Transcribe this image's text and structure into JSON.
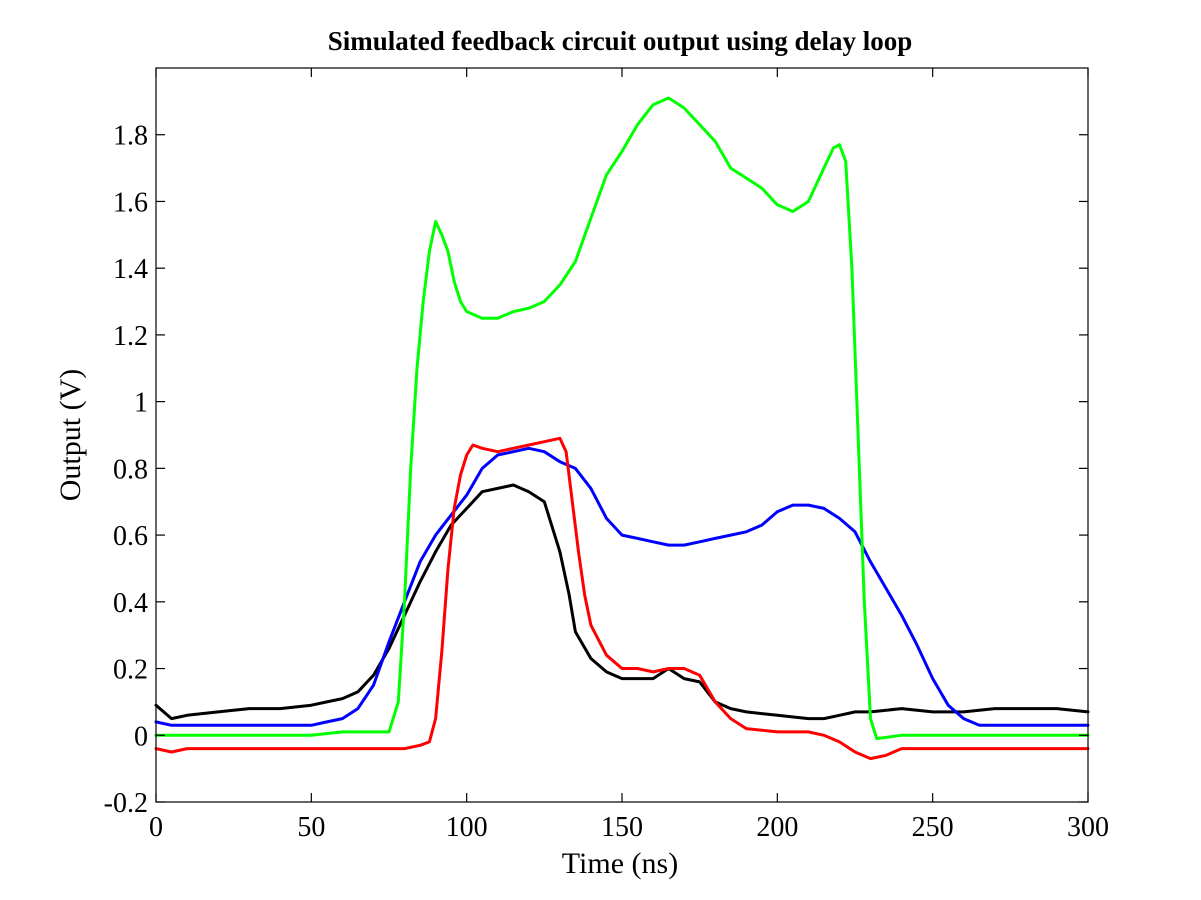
{
  "chart_data": {
    "type": "line",
    "title": "Simulated feedback circuit output using delay loop",
    "xlabel": "Time (ns)",
    "ylabel": "Output (V)",
    "xlim": [
      0,
      300
    ],
    "ylim": [
      -0.2,
      2.0
    ],
    "xticks": [
      0,
      50,
      100,
      150,
      200,
      250,
      300
    ],
    "xtick_labels": [
      "0",
      "50",
      "100",
      "150",
      "200",
      "250",
      "300"
    ],
    "yticks": [
      -0.2,
      0,
      0.2,
      0.4,
      0.6,
      0.8,
      1.0,
      1.2,
      1.4,
      1.6,
      1.8
    ],
    "ytick_labels": [
      "-0.2",
      "0",
      "0.2",
      "0.4",
      "0.6",
      "0.8",
      "1",
      "1.2",
      "1.4",
      "1.6",
      "1.8"
    ],
    "grid": false,
    "legend": "none",
    "series": [
      {
        "color": "#000000",
        "x": [
          0,
          5,
          10,
          20,
          30,
          40,
          50,
          55,
          60,
          65,
          70,
          75,
          80,
          85,
          90,
          95,
          100,
          105,
          110,
          115,
          120,
          125,
          130,
          133,
          135,
          140,
          145,
          150,
          160,
          165,
          170,
          175,
          180,
          185,
          190,
          200,
          210,
          215,
          220,
          225,
          230,
          240,
          250,
          260,
          270,
          280,
          290,
          300
        ],
        "y": [
          0.09,
          0.05,
          0.06,
          0.07,
          0.08,
          0.08,
          0.09,
          0.1,
          0.11,
          0.13,
          0.18,
          0.26,
          0.36,
          0.46,
          0.55,
          0.63,
          0.68,
          0.73,
          0.74,
          0.75,
          0.73,
          0.7,
          0.55,
          0.42,
          0.31,
          0.23,
          0.19,
          0.17,
          0.17,
          0.2,
          0.17,
          0.16,
          0.1,
          0.08,
          0.07,
          0.06,
          0.05,
          0.05,
          0.06,
          0.07,
          0.07,
          0.08,
          0.07,
          0.07,
          0.08,
          0.08,
          0.08,
          0.07
        ]
      },
      {
        "color": "#0000ff",
        "x": [
          0,
          5,
          10,
          20,
          30,
          40,
          50,
          55,
          60,
          65,
          70,
          75,
          80,
          85,
          90,
          95,
          100,
          105,
          110,
          115,
          120,
          125,
          130,
          135,
          140,
          145,
          150,
          155,
          160,
          165,
          170,
          175,
          180,
          185,
          190,
          195,
          200,
          205,
          210,
          215,
          220,
          225,
          230,
          235,
          240,
          245,
          250,
          255,
          260,
          265,
          270,
          280,
          290,
          300
        ],
        "y": [
          0.04,
          0.03,
          0.03,
          0.03,
          0.03,
          0.03,
          0.03,
          0.04,
          0.05,
          0.08,
          0.15,
          0.28,
          0.4,
          0.52,
          0.6,
          0.66,
          0.72,
          0.8,
          0.84,
          0.85,
          0.86,
          0.85,
          0.82,
          0.8,
          0.74,
          0.65,
          0.6,
          0.59,
          0.58,
          0.57,
          0.57,
          0.58,
          0.59,
          0.6,
          0.61,
          0.63,
          0.67,
          0.69,
          0.69,
          0.68,
          0.65,
          0.61,
          0.52,
          0.44,
          0.36,
          0.27,
          0.17,
          0.09,
          0.05,
          0.03,
          0.03,
          0.03,
          0.03,
          0.03
        ]
      },
      {
        "color": "#ff0000",
        "x": [
          0,
          5,
          10,
          20,
          30,
          40,
          50,
          60,
          70,
          80,
          85,
          88,
          90,
          92,
          94,
          96,
          98,
          100,
          102,
          105,
          110,
          115,
          120,
          125,
          130,
          132,
          134,
          136,
          138,
          140,
          145,
          150,
          155,
          160,
          165,
          170,
          175,
          180,
          185,
          190,
          200,
          210,
          215,
          220,
          225,
          230,
          235,
          240,
          250,
          260,
          270,
          280,
          290,
          300
        ],
        "y": [
          -0.04,
          -0.05,
          -0.04,
          -0.04,
          -0.04,
          -0.04,
          -0.04,
          -0.04,
          -0.04,
          -0.04,
          -0.03,
          -0.02,
          0.05,
          0.25,
          0.5,
          0.68,
          0.78,
          0.84,
          0.87,
          0.86,
          0.85,
          0.86,
          0.87,
          0.88,
          0.89,
          0.85,
          0.7,
          0.55,
          0.42,
          0.33,
          0.24,
          0.2,
          0.2,
          0.19,
          0.2,
          0.2,
          0.18,
          0.1,
          0.05,
          0.02,
          0.01,
          0.01,
          0.0,
          -0.02,
          -0.05,
          -0.07,
          -0.06,
          -0.04,
          -0.04,
          -0.04,
          -0.04,
          -0.04,
          -0.04,
          -0.04
        ]
      },
      {
        "color": "#00ff00",
        "x": [
          0,
          10,
          20,
          30,
          40,
          50,
          60,
          70,
          75,
          78,
          80,
          82,
          84,
          86,
          88,
          90,
          92,
          94,
          96,
          98,
          100,
          105,
          110,
          115,
          120,
          125,
          130,
          135,
          140,
          145,
          150,
          155,
          160,
          165,
          170,
          175,
          180,
          185,
          190,
          195,
          200,
          205,
          210,
          215,
          218,
          220,
          222,
          224,
          226,
          228,
          230,
          232,
          240,
          250,
          260,
          270,
          280,
          290,
          300
        ],
        "y": [
          0.0,
          0.0,
          0.0,
          0.0,
          0.0,
          0.0,
          0.01,
          0.01,
          0.01,
          0.1,
          0.4,
          0.8,
          1.1,
          1.3,
          1.45,
          1.54,
          1.5,
          1.45,
          1.36,
          1.3,
          1.27,
          1.25,
          1.25,
          1.27,
          1.28,
          1.3,
          1.35,
          1.42,
          1.55,
          1.68,
          1.75,
          1.83,
          1.89,
          1.91,
          1.88,
          1.83,
          1.78,
          1.7,
          1.67,
          1.64,
          1.59,
          1.57,
          1.6,
          1.7,
          1.76,
          1.77,
          1.72,
          1.4,
          0.9,
          0.4,
          0.05,
          -0.01,
          0.0,
          0.0,
          0.0,
          0.0,
          0.0,
          0.0,
          0.0
        ]
      }
    ]
  }
}
